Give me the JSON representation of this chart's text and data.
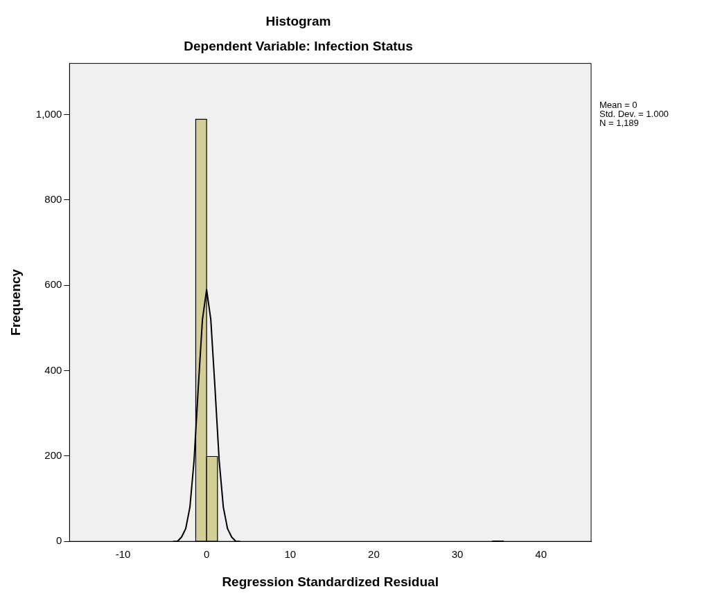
{
  "chart_data": {
    "type": "histogram",
    "title": "Histogram",
    "subtitle": "Dependent Variable: Infection Status",
    "xlabel": "Regression Standardized Residual",
    "ylabel": "Frequency",
    "bins": [
      -1.3,
      0,
      1.3,
      34.2,
      35.5
    ],
    "values": [
      989,
      199,
      0,
      1
    ],
    "color": "#d3ce97",
    "series": [
      {
        "type": "line",
        "color": "#000000",
        "x": [
          -4,
          -3.5,
          -3,
          -2.5,
          -2,
          -1.5,
          -1,
          -0.5,
          0,
          0.5,
          1,
          1.5,
          2,
          2.5,
          3,
          3.5,
          4
        ],
        "values": [
          0,
          0,
          10,
          30,
          80,
          190,
          360,
          520,
          590,
          520,
          360,
          190,
          80,
          30,
          10,
          0,
          0
        ]
      }
    ],
    "xlim": [
      -16.4,
      46
    ],
    "xticks": [
      -10,
      0,
      10,
      20,
      30,
      40
    ],
    "ylim": [
      0,
      1120
    ],
    "yticks": [
      0,
      200,
      400,
      600,
      800,
      {
        "value": 1000,
        "label": "1,000"
      }
    ],
    "grid": false,
    "legend": false,
    "marker": "none",
    "annotations": [
      "Mean = 0",
      "Std. Dev. = 1.000",
      "N = 1,189"
    ]
  }
}
